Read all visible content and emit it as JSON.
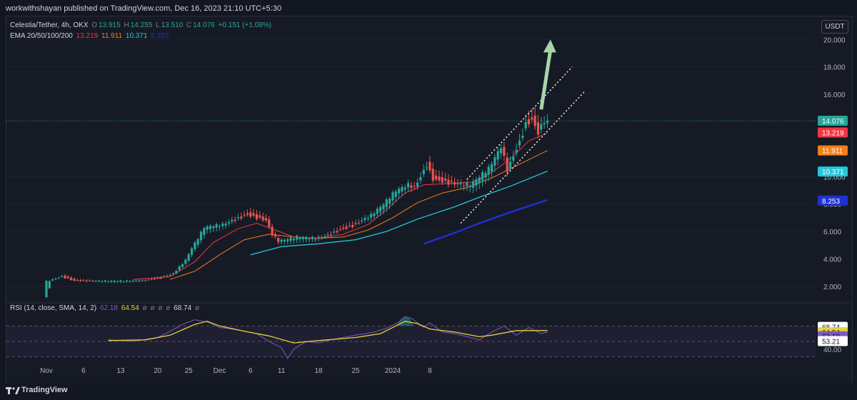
{
  "publisher": "workwithshayan published on TradingView.com, Dec 16, 2023 21:10 UTC+5:30",
  "brand": "TradingView",
  "currency_button": "USDT",
  "legend": {
    "symbol": "Celestia/Tether, 4h, OKX",
    "o_label": "O",
    "o_value": "13.915",
    "h_label": "H",
    "h_value": "14.255",
    "l_label": "L",
    "l_value": "13.510",
    "c_label": "C",
    "c_value": "14.076",
    "change": "+0.151 (+1.08%)",
    "ema_label": "EMA 20/50/100/200",
    "ema20": "13.219",
    "ema50": "11.911",
    "ema100": "10.371",
    "ema200": "8.253",
    "rsi_label": "RSI (14, close, SMA, 14, 2)",
    "rsi_value": "62.18",
    "rsi_sma": "64.54",
    "rsi_extra": [
      "ø",
      "ø",
      "ø",
      "ø",
      "68.74",
      "ø"
    ]
  },
  "colors": {
    "up": "#26a69a",
    "down": "#ef5350",
    "ema20": "#f23645",
    "ema50": "#f57f17",
    "ema100": "#26c6da",
    "ema200": "#1f2fd1",
    "rsi": "#7e57c2",
    "rsi_sma": "#e5d23b",
    "arrow": "#a5d6a7"
  },
  "chart_data": {
    "type": "candlestick",
    "timeframe": "4h",
    "x_ticks": [
      "Nov",
      "6",
      "13",
      "20",
      "25",
      "Dec",
      "6",
      "11",
      "18",
      "25",
      "2024",
      "8"
    ],
    "price_axis": {
      "ticks": [
        "2.000",
        "4.000",
        "6.000",
        "8.000",
        "10.000",
        "12.000",
        "14.000",
        "16.000",
        "18.000",
        "20.000"
      ],
      "range": [
        1.0,
        20.8
      ]
    },
    "price_labels": [
      {
        "value": 14.076,
        "text": "14.076",
        "color": "#26a69a"
      },
      {
        "value": 13.219,
        "text": "13.219",
        "color": "#f23645"
      },
      {
        "value": 11.911,
        "text": "11.911",
        "color": "#f57f17"
      },
      {
        "value": 10.371,
        "text": "10.371",
        "color": "#26c6da"
      },
      {
        "value": 8.253,
        "text": "8.253",
        "color": "#1f2fd1"
      }
    ],
    "price_path": [
      [
        0,
        1.3
      ],
      [
        1,
        2.4
      ],
      [
        3,
        2.7
      ],
      [
        5,
        2.4
      ],
      [
        16,
        2.4
      ],
      [
        19,
        2.6
      ],
      [
        21,
        2.9
      ],
      [
        23,
        3.9
      ],
      [
        24,
        4.8
      ],
      [
        25,
        5.5
      ],
      [
        26,
        6.3
      ],
      [
        27,
        6.4
      ],
      [
        29,
        6.5
      ],
      [
        30,
        6.7
      ],
      [
        33,
        7.2
      ],
      [
        36,
        6.8
      ],
      [
        37,
        5.8
      ],
      [
        38,
        5.3
      ],
      [
        39,
        5.4
      ],
      [
        41,
        5.6
      ],
      [
        44,
        5.5
      ],
      [
        46,
        5.7
      ],
      [
        48,
        6.1
      ],
      [
        50,
        6.4
      ],
      [
        53,
        7.2
      ],
      [
        55,
        8.0
      ],
      [
        57,
        9.0
      ],
      [
        59,
        9.4
      ],
      [
        60,
        9.2
      ],
      [
        62,
        10.8
      ],
      [
        63,
        9.8
      ],
      [
        66,
        9.5
      ],
      [
        69,
        9.4
      ],
      [
        72,
        10.6
      ],
      [
        74,
        12.2
      ],
      [
        75,
        10.5
      ],
      [
        77,
        12.5
      ],
      [
        78,
        13.8
      ],
      [
        79,
        14.1
      ],
      [
        80,
        13.2
      ],
      [
        81,
        14.1
      ]
    ],
    "ema_values": {
      "ema20": [
        [
          14,
          2.5
        ],
        [
          20,
          2.7
        ],
        [
          24,
          3.8
        ],
        [
          27,
          5.2
        ],
        [
          31,
          6.2
        ],
        [
          34,
          6.6
        ],
        [
          37,
          6.1
        ],
        [
          40,
          5.6
        ],
        [
          44,
          5.5
        ],
        [
          48,
          5.8
        ],
        [
          52,
          6.5
        ],
        [
          55,
          7.6
        ],
        [
          58,
          8.8
        ],
        [
          61,
          9.4
        ],
        [
          65,
          9.5
        ],
        [
          69,
          9.6
        ],
        [
          72,
          10.3
        ],
        [
          75,
          11.3
        ],
        [
          78,
          12.6
        ],
        [
          81,
          13.2
        ]
      ],
      "ema50": [
        [
          20,
          2.5
        ],
        [
          24,
          3.1
        ],
        [
          28,
          4.3
        ],
        [
          32,
          5.4
        ],
        [
          36,
          5.8
        ],
        [
          40,
          5.6
        ],
        [
          44,
          5.5
        ],
        [
          48,
          5.6
        ],
        [
          52,
          6.1
        ],
        [
          56,
          7.0
        ],
        [
          60,
          8.1
        ],
        [
          64,
          8.8
        ],
        [
          68,
          9.2
        ],
        [
          72,
          9.9
        ],
        [
          76,
          10.8
        ],
        [
          81,
          11.9
        ]
      ],
      "ema100": [
        [
          33,
          4.3
        ],
        [
          38,
          4.9
        ],
        [
          44,
          5.1
        ],
        [
          50,
          5.4
        ],
        [
          55,
          6.0
        ],
        [
          60,
          6.9
        ],
        [
          66,
          7.8
        ],
        [
          70,
          8.5
        ],
        [
          75,
          9.3
        ],
        [
          81,
          10.4
        ]
      ],
      "ema200": [
        [
          61,
          5.1
        ],
        [
          66,
          5.9
        ],
        [
          70,
          6.6
        ],
        [
          75,
          7.4
        ],
        [
          81,
          8.3
        ]
      ]
    },
    "channel": [
      {
        "from": [
          67,
          6.6
        ],
        "to": [
          87,
          16.2
        ]
      },
      {
        "from": [
          68,
          9.8
        ],
        "to": [
          85,
          18.0
        ]
      }
    ],
    "arrow": {
      "from": [
        80,
        14.9
      ],
      "to": [
        81.5,
        20.0
      ]
    },
    "rsi_axis": {
      "ticks": [
        "40.00"
      ],
      "labels": [
        {
          "value": 68.74,
          "text": "68.74",
          "color": "#d1d4dc"
        },
        {
          "value": 64.54,
          "text": "64.54",
          "color": "#e5d23b"
        },
        {
          "value": 62.18,
          "text": "62.18",
          "color": "#7e57c2"
        },
        {
          "value": 53.21,
          "text": "53.21",
          "color": "#d1d4dc"
        }
      ],
      "range": [
        25,
        85
      ],
      "bands": [
        70,
        30
      ]
    },
    "rsi_path": [
      [
        10,
        52
      ],
      [
        14,
        50
      ],
      [
        18,
        55
      ],
      [
        20,
        63
      ],
      [
        22,
        72
      ],
      [
        24,
        78
      ],
      [
        26,
        75
      ],
      [
        28,
        68
      ],
      [
        30,
        66
      ],
      [
        32,
        63
      ],
      [
        34,
        60
      ],
      [
        36,
        50
      ],
      [
        38,
        42
      ],
      [
        39,
        28
      ],
      [
        40,
        40
      ],
      [
        42,
        50
      ],
      [
        44,
        48
      ],
      [
        46,
        52
      ],
      [
        48,
        55
      ],
      [
        50,
        58
      ],
      [
        53,
        62
      ],
      [
        55,
        67
      ],
      [
        57,
        75
      ],
      [
        58,
        82
      ],
      [
        59,
        80
      ],
      [
        61,
        68
      ],
      [
        62,
        74
      ],
      [
        64,
        62
      ],
      [
        66,
        60
      ],
      [
        68,
        56
      ],
      [
        70,
        52
      ],
      [
        72,
        62
      ],
      [
        74,
        70
      ],
      [
        76,
        58
      ],
      [
        78,
        68
      ],
      [
        79,
        64
      ],
      [
        80,
        60
      ],
      [
        81,
        62
      ]
    ],
    "rsi_sma_path": [
      [
        10,
        51
      ],
      [
        16,
        52
      ],
      [
        20,
        58
      ],
      [
        24,
        72
      ],
      [
        26,
        76
      ],
      [
        28,
        70
      ],
      [
        32,
        63
      ],
      [
        36,
        57
      ],
      [
        40,
        48
      ],
      [
        44,
        51
      ],
      [
        50,
        55
      ],
      [
        54,
        60
      ],
      [
        56,
        68
      ],
      [
        58,
        76
      ],
      [
        60,
        73
      ],
      [
        62,
        66
      ],
      [
        66,
        62
      ],
      [
        70,
        56
      ],
      [
        72,
        58
      ],
      [
        76,
        64
      ],
      [
        80,
        64
      ],
      [
        81,
        64
      ]
    ]
  }
}
